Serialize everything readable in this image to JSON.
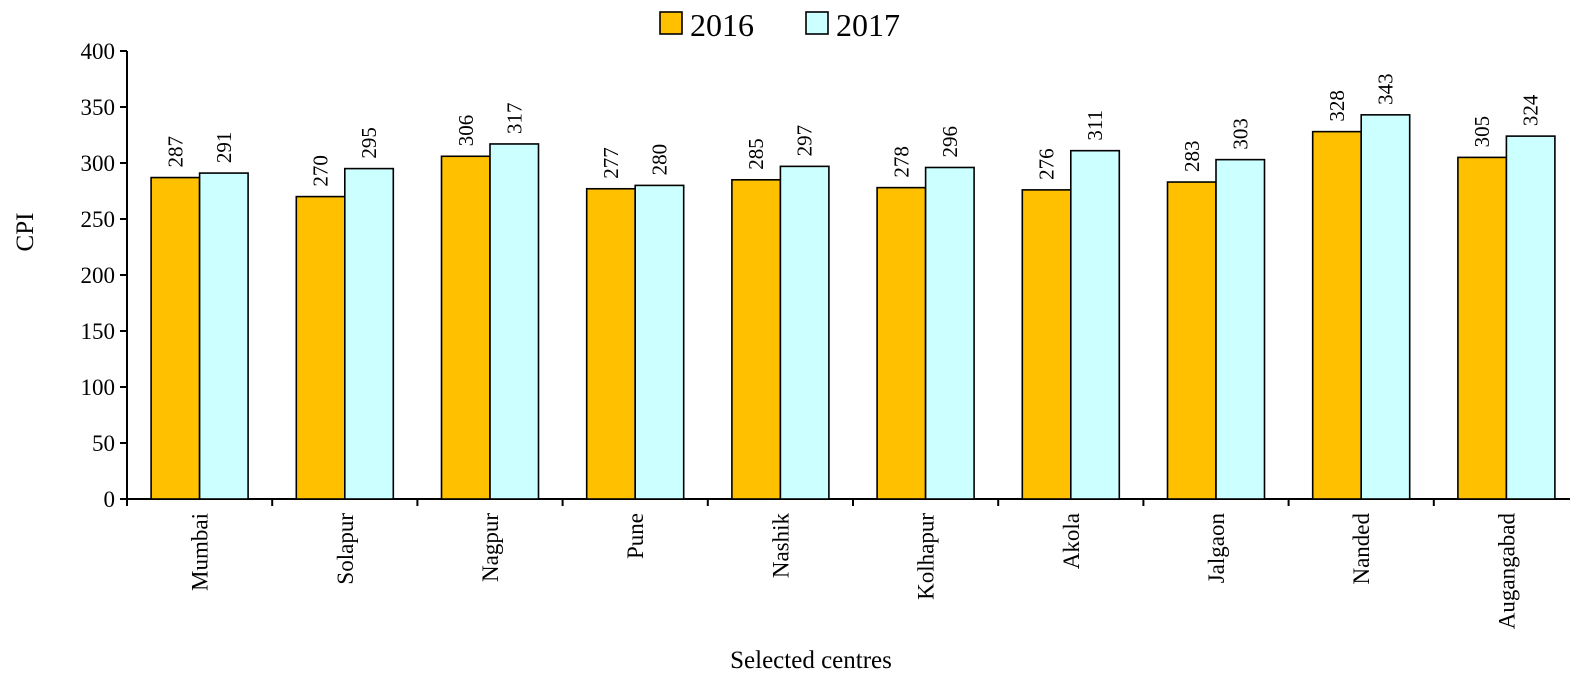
{
  "chart_data": {
    "type": "bar",
    "title": "",
    "xlabel": "Selected centres",
    "ylabel": "CPI",
    "ylim": [
      0,
      400
    ],
    "yticks": [
      0,
      50,
      100,
      150,
      200,
      250,
      300,
      350,
      400
    ],
    "grid": false,
    "legend_position": "top-center",
    "categories": [
      "Mumbai",
      "Solapur",
      "Nagpur",
      "Pune",
      "Nashik",
      "Kolhapur",
      "Akola",
      "Jalgaon",
      "Nanded",
      "Augangabad"
    ],
    "series": [
      {
        "name": "2016",
        "color": "#FFC000",
        "values": [
          287,
          270,
          306,
          277,
          285,
          278,
          276,
          283,
          328,
          305
        ]
      },
      {
        "name": "2017",
        "color": "#CCFFFF",
        "values": [
          291,
          295,
          317,
          280,
          297,
          296,
          311,
          303,
          343,
          324
        ]
      }
    ]
  }
}
